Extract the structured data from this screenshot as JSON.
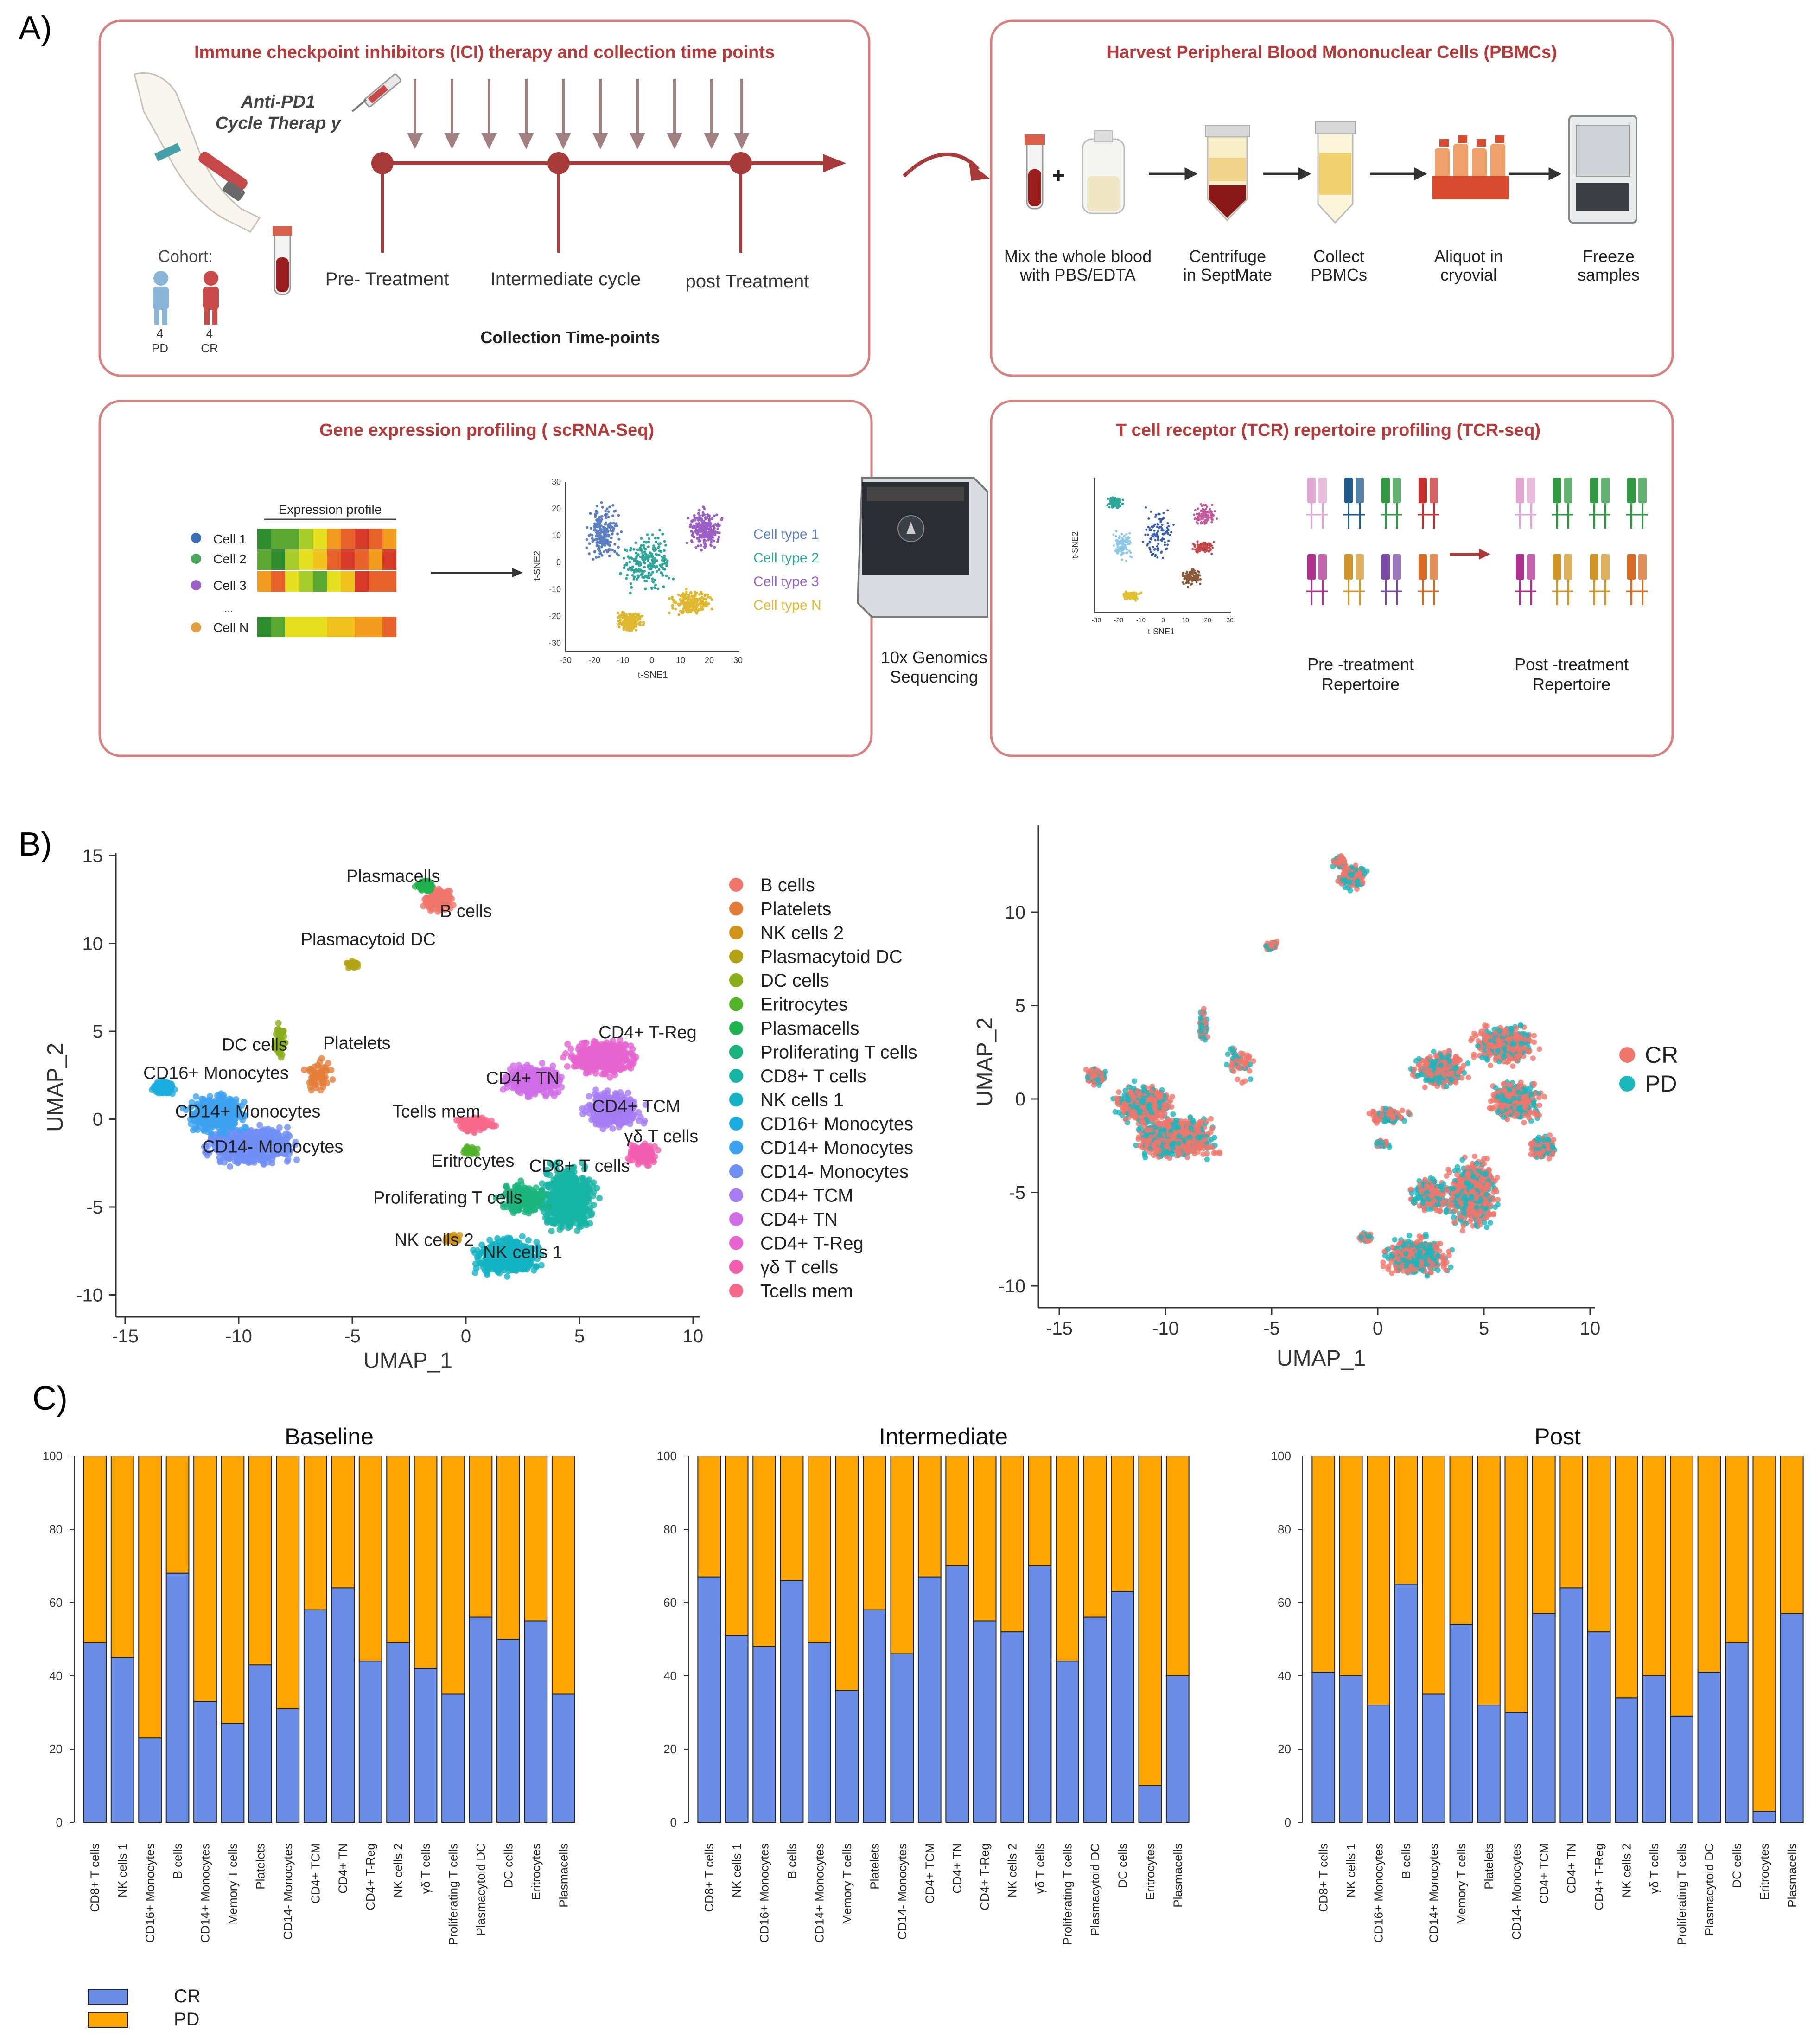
{
  "panels": {
    "a": "A)",
    "b": "B)",
    "c": "C)"
  },
  "panelA": {
    "box1": {
      "title": "Immune checkpoint inhibitors (ICI)  therapy and collection time points",
      "therapy_line1": "Anti-PD1",
      "therapy_line2": "Cycle Therap y",
      "cohort_label": "Cohort:",
      "pd_count": "4",
      "pd_label": "PD",
      "cr_count": "4",
      "cr_label": "CR",
      "timepoints": [
        "Pre- Treatment",
        "Intermediate cycle",
        "post Treatment"
      ],
      "footer": "Collection Time-points"
    },
    "box2": {
      "title": "Harvest Peripheral Blood Mononuclear Cells (PBMCs)",
      "steps": [
        {
          "l1": "Mix the whole blood",
          "l2": "with PBS/EDTA"
        },
        {
          "l1": "Centrifuge",
          "l2": "in SeptMate"
        },
        {
          "l1": "Collect",
          "l2": "PBMCs"
        },
        {
          "l1": "Aliquot in",
          "l2": "cryovial"
        },
        {
          "l1": "Freeze",
          "l2": "samples"
        }
      ],
      "plus": "+"
    },
    "box3": {
      "title": "Gene expression profiling ( scRNA-Seq)",
      "heatmap_title": "Expression profile",
      "cells": [
        "Cell 1",
        "Cell 2",
        "Cell 3",
        "....",
        "Cell N"
      ],
      "tsne_ylabel": "t-SNE2",
      "tsne_xlabel": "t-SNE1",
      "tsne_xticks": [
        "-30",
        "-20",
        "-10",
        "0",
        "10",
        "20",
        "30"
      ],
      "tsne_yticks": [
        "30",
        "20",
        "10",
        "0",
        "-10",
        "-20",
        "-30"
      ],
      "cell_types": [
        "Cell type 1",
        "Cell type 2",
        "Cell type 3",
        "Cell type N"
      ],
      "colors": [
        "#5b7fc0",
        "#2ea69a",
        "#9b5fc5",
        "#e0b830"
      ]
    },
    "sequencer": {
      "l1": "10x Genomics",
      "l2": "Sequencing"
    },
    "box4": {
      "title": "T cell receptor (TCR) repertoire profiling (TCR-seq)",
      "pre_l1": "Pre -treatment",
      "pre_l2": "Repertoire",
      "post_l1": "Post -treatment",
      "post_l2": "Repertoire",
      "mini_ylabel": "t-SNE2",
      "mini_xlabel": "t-SNE1",
      "mini_xticks": [
        "-30",
        "-20",
        "-10",
        "0",
        "10",
        "20",
        "30"
      ]
    }
  },
  "umap": {
    "xlabel": "UMAP_1",
    "ylabel": "UMAP_2",
    "xticks": [
      "-15",
      "-10",
      "-5",
      "0",
      "5",
      "10"
    ],
    "yticks_left": [
      "15",
      "10",
      "5",
      "0",
      "-5",
      "-10"
    ],
    "yticks_right": [
      "10",
      "5",
      "0",
      "-5",
      "-10"
    ],
    "cluster_labels": [
      "Plasmacells",
      "B cells",
      "Plasmacytoid DC",
      "DC cells",
      "Platelets",
      "CD16+ Monocytes",
      "CD14+ Monocytes",
      "CD14- Monocytes",
      "Tcells mem",
      "Eritrocytes",
      "Proliferating T cells",
      "NK cells 2",
      "NK cells 1",
      "CD8+ T cells",
      "CD4+ TN",
      "CD4+ T-Reg",
      "CD4+ TCM",
      "γδ T cells"
    ],
    "legend": [
      {
        "label": "B cells",
        "color": "#f0766c"
      },
      {
        "label": "Platelets",
        "color": "#e37e3a"
      },
      {
        "label": "NK cells 2",
        "color": "#cf9418"
      },
      {
        "label": "Plasmacytoid DC",
        "color": "#b3a213"
      },
      {
        "label": "DC cells",
        "color": "#8aad1a"
      },
      {
        "label": "Eritrocytes",
        "color": "#53b32b"
      },
      {
        "label": "Plasmacells",
        "color": "#1eb24e"
      },
      {
        "label": "Proliferating T cells",
        "color": "#1ab47e"
      },
      {
        "label": "CD8+ T cells",
        "color": "#16b4a5"
      },
      {
        "label": "NK cells 1",
        "color": "#13b3c3"
      },
      {
        "label": "CD16+ Monocytes",
        "color": "#1aaee0"
      },
      {
        "label": "CD14+ Monocytes",
        "color": "#3da2f0"
      },
      {
        "label": "CD14- Monocytes",
        "color": "#6f8ff5"
      },
      {
        "label": "CD4+ TCM",
        "color": "#a57cf2"
      },
      {
        "label": "CD4+ TN",
        "color": "#cf6de7"
      },
      {
        "label": "CD4+ T-Reg",
        "color": "#e663d0"
      },
      {
        "label": "γδ T cells",
        "color": "#f35fb0"
      },
      {
        "label": "Tcells mem",
        "color": "#f8688b"
      }
    ],
    "group_legend": [
      {
        "label": "CR",
        "color": "#f0766c"
      },
      {
        "label": "PD",
        "color": "#1ab7bd"
      }
    ]
  },
  "chart_data": {
    "type": "bar",
    "stacked": true,
    "ylim": [
      0,
      100
    ],
    "yticks": [
      "0",
      "20",
      "40",
      "60",
      "80",
      "100"
    ],
    "legend": [
      {
        "label": "CR",
        "color": "#6a8ee8"
      },
      {
        "label": "PD",
        "color": "#ffa500"
      }
    ],
    "panels": [
      {
        "title": "Baseline",
        "categories": [
          "CD8+ T cells",
          "NK cells 1",
          "CD16+ Monocytes",
          "B cells",
          "CD14+ Monocytes",
          "Memory T cells",
          "Platelets",
          "CD14- Monocytes",
          "CD4+ TCM",
          "CD4+ TN",
          "CD4+ T-Reg",
          "NK cells 2",
          "γδ T cells",
          "Proliferating T cells",
          "Plasmacytoid DC",
          "DC cells",
          "Eritrocytes",
          "Plasmacells"
        ],
        "cr": [
          49,
          45,
          23,
          68,
          33,
          27,
          43,
          31,
          58,
          64,
          44,
          49,
          42,
          35,
          56,
          50,
          55,
          35
        ]
      },
      {
        "title": "Intermediate",
        "categories": [
          "CD8+ T cells",
          "NK cells 1",
          "CD16+ Monocytes",
          "B cells",
          "CD14+ Monocytes",
          "Memory T cells",
          "Platelets",
          "CD14- Monocytes",
          "CD4+ TCM",
          "CD4+ TN",
          "CD4+ T-Reg",
          "NK cells 2",
          "γδ T cells",
          "Proliferating T cells",
          "Plasmacytoid DC",
          "DC cells",
          "Eritrocytes",
          "Plasmacells"
        ],
        "cr": [
          67,
          51,
          48,
          66,
          49,
          36,
          58,
          46,
          67,
          70,
          55,
          52,
          70,
          44,
          56,
          63,
          10,
          40
        ]
      },
      {
        "title": "Post",
        "categories": [
          "CD8+ T cells",
          "NK cells 1",
          "CD16+ Monocytes",
          "B cells",
          "CD14+ Monocytes",
          "Memory T cells",
          "Platelets",
          "CD14- Monocytes",
          "CD4+ TCM",
          "CD4+ TN",
          "CD4+ T-Reg",
          "NK cells 2",
          "γδ T cells",
          "Proliferating T cells",
          "Plasmacytoid DC",
          "DC cells",
          "Eritrocytes",
          "Plasmacells"
        ],
        "cr": [
          41,
          40,
          32,
          65,
          35,
          54,
          32,
          30,
          57,
          64,
          52,
          34,
          40,
          29,
          41,
          49,
          3,
          57
        ]
      }
    ]
  }
}
